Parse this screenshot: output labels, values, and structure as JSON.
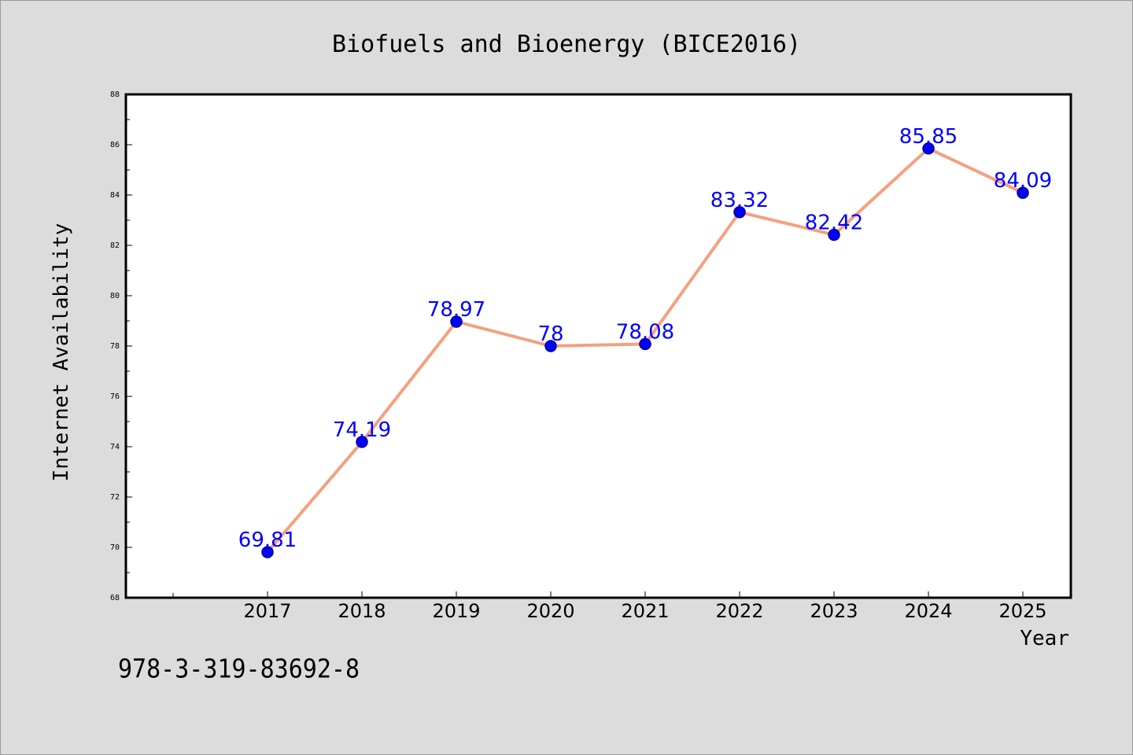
{
  "chart_data": {
    "type": "line",
    "title": "Biofuels and Bioenergy (BICE2016)",
    "xlabel": "Year",
    "ylabel": "Internet Availability",
    "categories": [
      "2017",
      "2018",
      "2019",
      "2020",
      "2021",
      "2022",
      "2023",
      "2024",
      "2025"
    ],
    "series": [
      {
        "values": [
          69.81,
          74.19,
          78.97,
          78,
          78.08,
          83.32,
          82.42,
          85.85,
          84.09
        ],
        "data_labels": [
          "69.81",
          "74.19",
          "78.97",
          "78",
          "78.08",
          "83.32",
          "82.42",
          "85.85",
          "84.09"
        ]
      }
    ],
    "ylim": [
      68,
      88
    ],
    "yticks": [
      68,
      70,
      72,
      74,
      76,
      78,
      80,
      82,
      84,
      86,
      88
    ],
    "grid": false,
    "legend": "none",
    "colors": {
      "line": "#f4a07f",
      "marker": "#0000ff",
      "marker_edge": "#00008b",
      "labels": "#0000ff",
      "background": "#dcdcdc",
      "plot_background": "#ffffff"
    }
  },
  "footer": {
    "isbn": "978-3-319-83692-8"
  }
}
